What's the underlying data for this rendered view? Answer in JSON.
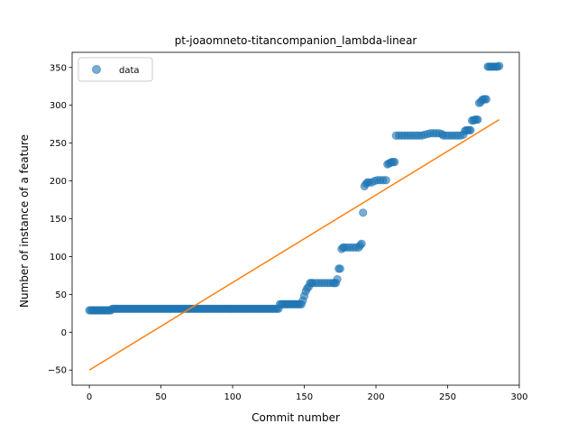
{
  "chart_data": {
    "type": "scatter",
    "title": "pt-joaomneto-titancompanion_lambda-linear",
    "xlabel": "Commit number",
    "ylabel": "Number of instance of a feature",
    "xlim": [
      -12,
      300
    ],
    "ylim": [
      -70,
      370
    ],
    "xticks": [
      0,
      50,
      100,
      150,
      200,
      250,
      300
    ],
    "yticks": [
      -50,
      0,
      50,
      100,
      150,
      200,
      250,
      300,
      350
    ],
    "legend": {
      "position": "top-left",
      "entries": [
        "data"
      ]
    },
    "grid": false,
    "colors": {
      "data": "#1f77b4",
      "fit": "#ff7f0e"
    },
    "series": [
      {
        "name": "data",
        "kind": "scatter",
        "segments": [
          {
            "x_from": 0,
            "x_to": 15,
            "y": 29
          },
          {
            "x_from": 16,
            "x_to": 132,
            "y": 31
          },
          {
            "x_from": 133,
            "x_to": 148,
            "y": 37
          }
        ],
        "points": [
          [
            149,
            42
          ],
          [
            150,
            48
          ],
          [
            151,
            54
          ],
          [
            152,
            58
          ],
          [
            153,
            60
          ],
          [
            154,
            65
          ],
          [
            155,
            65
          ],
          [
            156,
            65
          ],
          [
            158,
            65
          ],
          [
            160,
            65
          ],
          [
            162,
            65
          ],
          [
            164,
            65
          ],
          [
            166,
            65
          ],
          [
            168,
            65
          ],
          [
            170,
            65
          ],
          [
            171,
            65
          ],
          [
            172,
            65
          ],
          [
            173,
            70
          ],
          [
            174,
            84
          ],
          [
            175,
            84
          ],
          [
            176,
            110
          ],
          [
            177,
            112
          ],
          [
            178,
            112
          ],
          [
            180,
            112
          ],
          [
            182,
            112
          ],
          [
            184,
            112
          ],
          [
            186,
            112
          ],
          [
            188,
            112
          ],
          [
            189,
            115
          ],
          [
            190,
            117
          ],
          [
            191,
            158
          ],
          [
            192,
            193
          ],
          [
            193,
            196
          ],
          [
            194,
            198
          ],
          [
            195,
            198
          ],
          [
            197,
            198
          ],
          [
            199,
            200
          ],
          [
            201,
            201
          ],
          [
            203,
            201
          ],
          [
            205,
            201
          ],
          [
            207,
            201
          ],
          [
            208,
            222
          ],
          [
            209,
            223
          ],
          [
            210,
            224
          ],
          [
            211,
            225
          ],
          [
            212,
            225
          ],
          [
            213,
            225
          ],
          [
            214,
            260
          ],
          [
            216,
            260
          ],
          [
            218,
            260
          ],
          [
            220,
            260
          ],
          [
            222,
            260
          ],
          [
            224,
            260
          ],
          [
            226,
            260
          ],
          [
            228,
            260
          ],
          [
            230,
            260
          ],
          [
            232,
            260
          ],
          [
            234,
            261
          ],
          [
            236,
            262
          ],
          [
            238,
            263
          ],
          [
            240,
            263
          ],
          [
            242,
            263
          ],
          [
            244,
            263
          ],
          [
            246,
            262
          ],
          [
            247,
            260
          ],
          [
            249,
            260
          ],
          [
            251,
            260
          ],
          [
            253,
            260
          ],
          [
            255,
            260
          ],
          [
            257,
            260
          ],
          [
            259,
            260
          ],
          [
            261,
            261
          ],
          [
            262,
            266
          ],
          [
            263,
            267
          ],
          [
            264,
            267
          ],
          [
            265,
            267
          ],
          [
            266,
            267
          ],
          [
            267,
            280
          ],
          [
            268,
            280
          ],
          [
            269,
            281
          ],
          [
            270,
            281
          ],
          [
            271,
            281
          ],
          [
            272,
            303
          ],
          [
            273,
            304
          ],
          [
            274,
            307
          ],
          [
            275,
            308
          ],
          [
            276,
            308
          ],
          [
            277,
            308
          ],
          [
            278,
            351
          ],
          [
            279,
            351
          ],
          [
            280,
            351
          ],
          [
            281,
            351
          ],
          [
            282,
            351
          ],
          [
            283,
            351
          ],
          [
            284,
            351
          ],
          [
            285,
            351
          ],
          [
            286,
            352
          ]
        ]
      },
      {
        "name": "",
        "kind": "line",
        "x": [
          0,
          286
        ],
        "y": [
          -50,
          281
        ]
      }
    ]
  }
}
